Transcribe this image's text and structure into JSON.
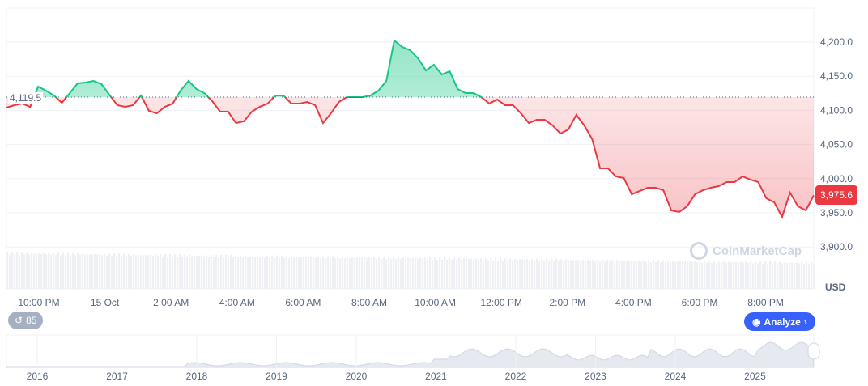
{
  "chart_data": {
    "type": "line",
    "series_start": "14 Oct 21:00",
    "interval_minutes": 15,
    "values": [
      4104.0,
      4107.6,
      4109.9,
      4105.2,
      4134.8,
      4128.9,
      4121.8,
      4111.1,
      4125.3,
      4139.6,
      4140.8,
      4143.1,
      4138.4,
      4123.0,
      4107.6,
      4105.2,
      4107.6,
      4121.8,
      4099.3,
      4095.7,
      4105.2,
      4109.9,
      4128.9,
      4143.1,
      4131.3,
      4125.3,
      4113.5,
      4098.1,
      4098.1,
      4081.5,
      4083.9,
      4098.1,
      4105.2,
      4109.9,
      4121.8,
      4121.8,
      4109.9,
      4109.9,
      4112.3,
      4107.6,
      4081.5,
      4095.7,
      4112.3,
      4119.4,
      4119.4,
      4119.4,
      4121.8,
      4128.9,
      4143.1,
      4202.4,
      4192.9,
      4188.2,
      4176.3,
      4158.5,
      4166.8,
      4152.6,
      4157.3,
      4131.3,
      4125.3,
      4125.3,
      4119.4,
      4109.9,
      4115.9,
      4107.6,
      4107.6,
      4095.7,
      4081.5,
      4086.2,
      4086.2,
      4078.0,
      4066.1,
      4072.0,
      4093.4,
      4078.0,
      4057.8,
      4015.1,
      4015.1,
      4003.3,
      4000.9,
      3977.2,
      3981.9,
      3986.7,
      3986.7,
      3983.1,
      3953.5,
      3951.2,
      3959.6,
      3977.2,
      3983.1,
      3986.7,
      3989.1,
      3995.0,
      3995.0,
      4003.3,
      3998.6,
      3995.0,
      3971.3,
      3965.4,
      3944.0,
      3979.6,
      3959.6,
      3953.5,
      3975.6
    ],
    "baseline": 4119.5,
    "baseline_label": "4,119.5",
    "current_label": "3,975.6",
    "ylim": [
      3880,
      4245
    ],
    "y_ticks": [
      {
        "v": 4200,
        "l": "4,200.0"
      },
      {
        "v": 4150,
        "l": "4,150.0"
      },
      {
        "v": 4100,
        "l": "4,100.0"
      },
      {
        "v": 4050,
        "l": "4,050.0"
      },
      {
        "v": 4000,
        "l": "4,000.0"
      },
      {
        "v": 3950,
        "l": "3,950.0"
      },
      {
        "v": 3900,
        "l": "3,900.0"
      }
    ],
    "x_ticks": [
      "10:00 PM",
      "15 Oct",
      "2:00 AM",
      "4:00 AM",
      "6:00 AM",
      "8:00 AM",
      "10:00 AM",
      "12:00 PM",
      "2:00 PM",
      "4:00 PM",
      "6:00 PM",
      "8:00 PM"
    ],
    "unit": "USD",
    "year_ticks": [
      "2016",
      "2017",
      "2018",
      "2019",
      "2020",
      "2021",
      "2022",
      "2023",
      "2024",
      "2025"
    ],
    "colors": {
      "up": "#16c784",
      "down": "#ea3943",
      "accent": "#3861fb"
    }
  },
  "ui": {
    "history_count": "85",
    "analyze": "Analyze",
    "watermark": "CoinMarketCap"
  }
}
